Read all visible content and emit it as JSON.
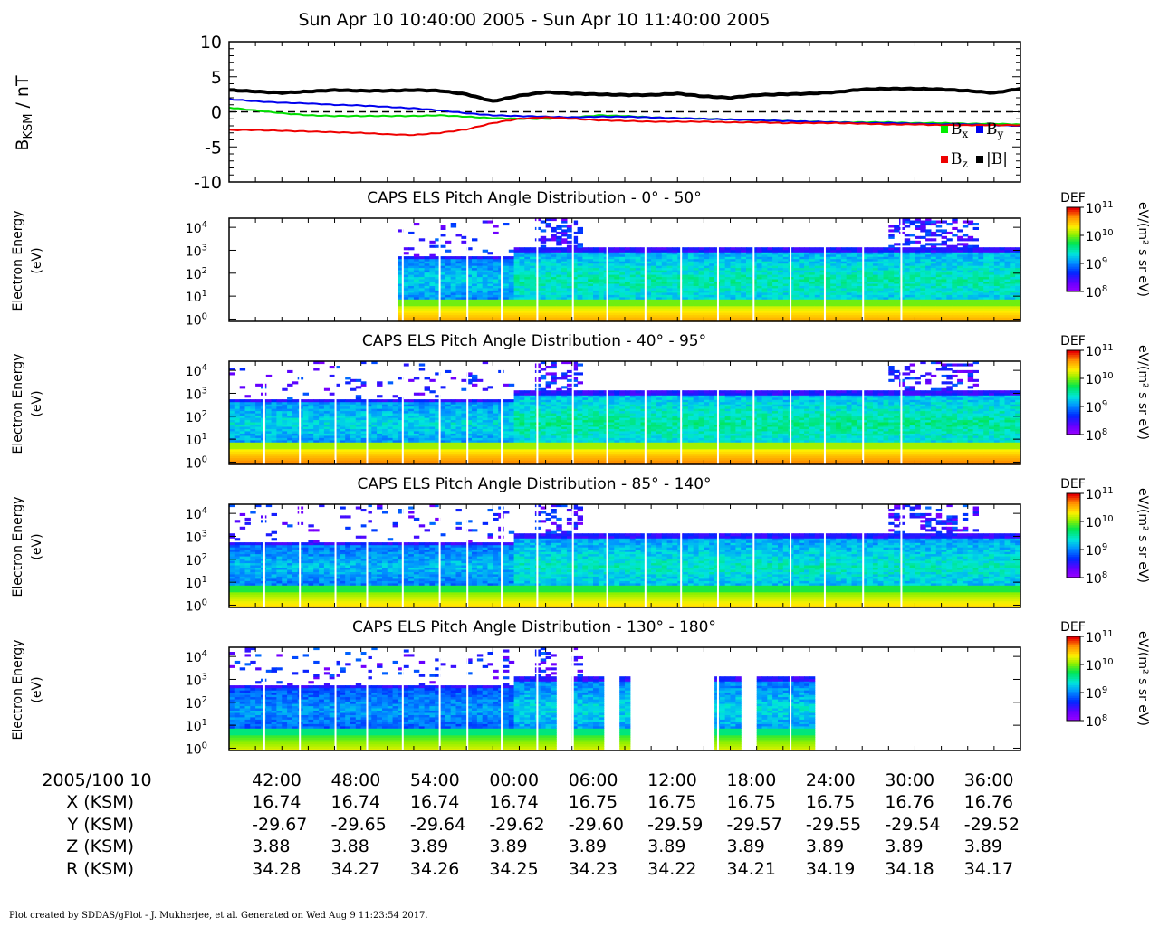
{
  "chart_data": {
    "title": "Sun Apr 10 10:40:00 2005 - Sun Apr 10 11:40:00 2005",
    "footer": "Plot created by SDDAS/gPlot - J. Mukherjee, et al.  Generated on Wed Aug 9 11:23:54 2017.",
    "time_range": [
      "2005-04-10 10:40:00",
      "2005-04-10 11:40:00"
    ],
    "mag": {
      "type": "line",
      "ylabel_main": "B",
      "ylabel_sub": "KSM",
      "ylabel_unit": " / nT",
      "ylim": [
        -10,
        10
      ],
      "yticks": [
        10,
        5,
        0,
        -5,
        -10
      ],
      "zero_line": true,
      "x_minutes": [
        0,
        2,
        4,
        6,
        8,
        10,
        12,
        14,
        16,
        18,
        20,
        22,
        24,
        26,
        28,
        30,
        32,
        34,
        36,
        38,
        40,
        42,
        44,
        46,
        48,
        50,
        52,
        54,
        56,
        58,
        60
      ],
      "series": [
        {
          "name": "Bx",
          "color": "#00dd00",
          "values": [
            0.6,
            0.2,
            -0.2,
            -0.5,
            -0.6,
            -0.6,
            -0.6,
            -0.6,
            -0.5,
            -0.7,
            -0.9,
            -1.0,
            -1.0,
            -0.8,
            -0.5,
            -0.6,
            -0.8,
            -0.9,
            -1.0,
            -1.1,
            -1.2,
            -1.3,
            -1.4,
            -1.5,
            -1.5,
            -1.5,
            -1.6,
            -1.6,
            -1.7,
            -1.7,
            -1.8
          ]
        },
        {
          "name": "By",
          "color": "#0000ee",
          "values": [
            1.8,
            1.5,
            1.3,
            1.2,
            1.0,
            0.9,
            0.7,
            0.5,
            0.2,
            -0.2,
            -0.5,
            -0.6,
            -0.7,
            -0.8,
            -0.7,
            -0.7,
            -0.8,
            -0.9,
            -1.0,
            -1.1,
            -1.2,
            -1.3,
            -1.4,
            -1.5,
            -1.6,
            -1.6,
            -1.7,
            -1.8,
            -1.8,
            -1.9,
            -2.0
          ]
        },
        {
          "name": "Bz",
          "color": "#ee0000",
          "values": [
            -2.6,
            -2.6,
            -2.7,
            -2.8,
            -2.9,
            -3.0,
            -3.2,
            -3.3,
            -3.0,
            -2.5,
            -1.6,
            -1.0,
            -0.8,
            -1.0,
            -1.2,
            -1.3,
            -1.4,
            -1.4,
            -1.4,
            -1.5,
            -1.5,
            -1.6,
            -1.6,
            -1.6,
            -1.7,
            -1.8,
            -1.8,
            -1.9,
            -1.9,
            -1.9,
            -1.9
          ]
        },
        {
          "name": "|B|",
          "color": "#000000",
          "values": [
            3.1,
            2.9,
            2.7,
            2.9,
            3.1,
            3.0,
            3.0,
            3.1,
            3.0,
            2.5,
            1.5,
            2.3,
            2.8,
            2.6,
            2.5,
            2.4,
            2.4,
            2.6,
            2.2,
            2.0,
            2.4,
            2.5,
            2.6,
            2.8,
            3.2,
            3.3,
            3.3,
            3.2,
            3.0,
            2.7,
            3.3
          ]
        }
      ],
      "legend": [
        {
          "label": "B",
          "sub": "x",
          "color": "#00ee00"
        },
        {
          "label": "B",
          "sub": "y",
          "color": "#0000ee"
        },
        {
          "label": "B",
          "sub": "z",
          "color": "#ee0000"
        },
        {
          "label": "|B|",
          "sub": "",
          "color": "#000000"
        }
      ],
      "legend_position": "bottom-right"
    },
    "spectrograms": [
      {
        "type": "heatmap",
        "title": "CAPS ELS Pitch Angle Distribution - 0° - 50°",
        "ylabel": [
          "Electron Energy",
          "(eV)"
        ]
      },
      {
        "type": "heatmap",
        "title": "CAPS ELS Pitch Angle Distribution - 40° - 95°",
        "ylabel": [
          "Electron Energy",
          "(eV)"
        ]
      },
      {
        "type": "heatmap",
        "title": "CAPS ELS Pitch Angle Distribution - 85° - 140°",
        "ylabel": [
          "Electron Energy",
          "(eV)"
        ]
      },
      {
        "type": "heatmap",
        "title": "CAPS ELS Pitch Angle Distribution - 130° - 180°",
        "ylabel": [
          "Electron Energy",
          "(eV)"
        ]
      }
    ],
    "energy_axis": {
      "scale": "log",
      "ticks_exp": [
        "0",
        "1",
        "2",
        "3",
        "4"
      ],
      "tick_base": "10"
    },
    "colorbar": {
      "label": "DEF",
      "unit": "eV/(m² s sr eV)",
      "scale": "log",
      "range": [
        100000000.0,
        100000000000.0
      ],
      "ticks_exp": [
        "8",
        "9",
        "10",
        "11"
      ],
      "tick_base": "10"
    },
    "xaxis": {
      "ticks_minutes": [
        2,
        8,
        14,
        20,
        26,
        32,
        38,
        44,
        50,
        56
      ],
      "row_labels": [
        "2005/100 10",
        "X (KSM)",
        "Y (KSM)",
        "Z (KSM)",
        "R (KSM)"
      ],
      "rows": [
        [
          "42:00",
          "48:00",
          "54:00",
          "00:00",
          "06:00",
          "12:00",
          "18:00",
          "24:00",
          "30:00",
          "36:00"
        ],
        [
          "16.74",
          "16.74",
          "16.74",
          "16.74",
          "16.75",
          "16.75",
          "16.75",
          "16.75",
          "16.76",
          "16.76"
        ],
        [
          "-29.67",
          "-29.65",
          "-29.64",
          "-29.62",
          "-29.60",
          "-29.59",
          "-29.57",
          "-29.55",
          "-29.54",
          "-29.52"
        ],
        [
          "3.88",
          "3.88",
          "3.89",
          "3.89",
          "3.89",
          "3.89",
          "3.89",
          "3.89",
          "3.89",
          "3.89"
        ],
        [
          "34.28",
          "34.27",
          "34.26",
          "34.25",
          "34.23",
          "34.22",
          "34.21",
          "34.19",
          "34.18",
          "34.17"
        ]
      ]
    }
  }
}
